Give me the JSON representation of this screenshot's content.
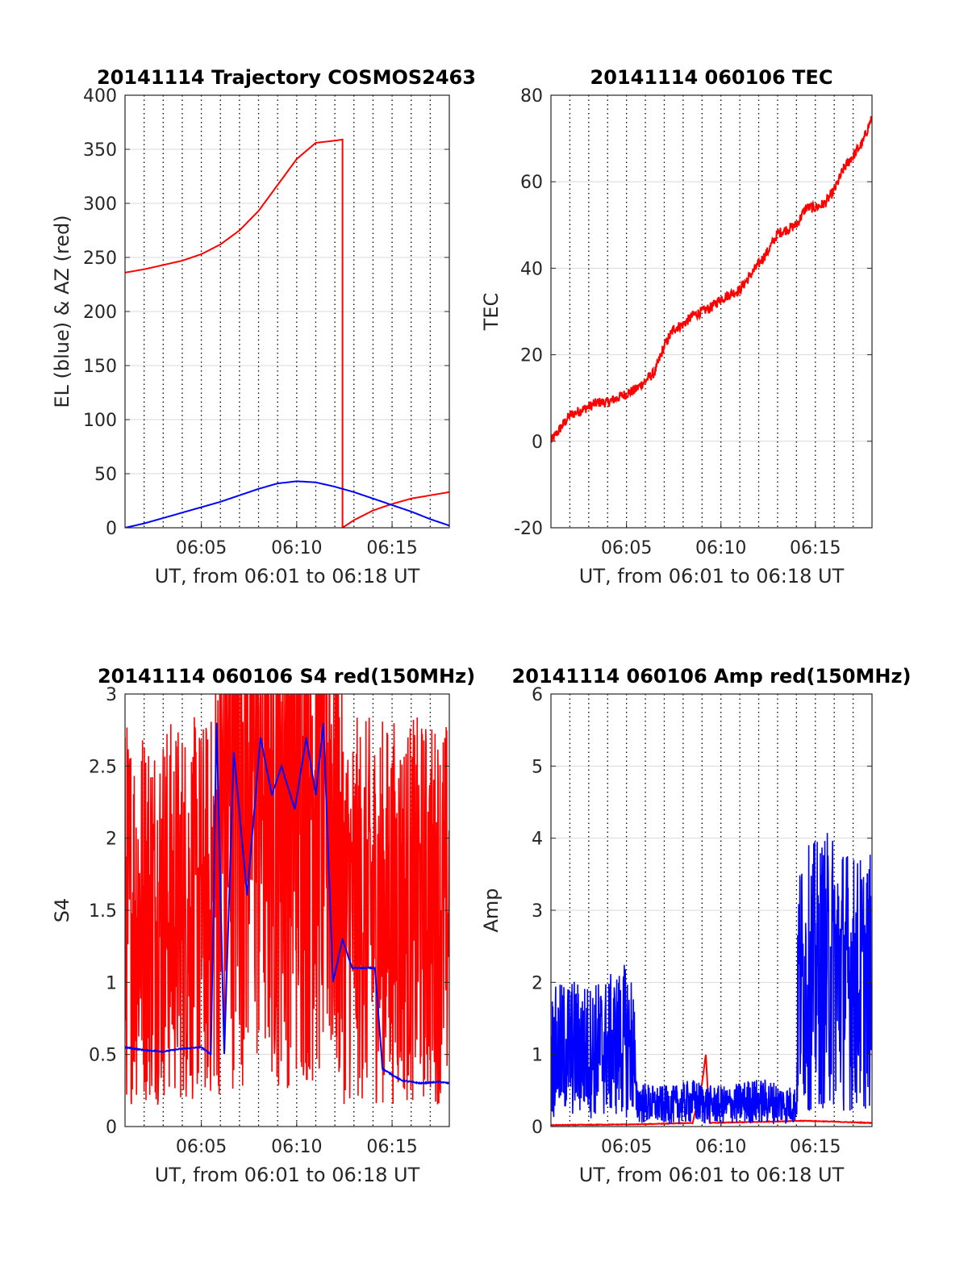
{
  "figure": {
    "background": "#ffffff"
  },
  "colors": {
    "red": "#ff0000",
    "blue": "#0000ff",
    "grid": "#d9d9d9",
    "vgrid": "#000000"
  },
  "chart_data": [
    {
      "type": "line",
      "title": "20141114 Trajectory COSMOS2463",
      "xlabel": "UT, from 06:01 to 06:18 UT",
      "ylabel": "EL (blue) & AZ (red)",
      "xlim": [
        6.1,
        23.1
      ],
      "ylim": [
        0,
        400
      ],
      "yticks": [
        0,
        50,
        100,
        150,
        200,
        250,
        300,
        350,
        400
      ],
      "xticks": [
        {
          "value": 10.1,
          "label": "06:05"
        },
        {
          "value": 15.1,
          "label": "06:10"
        },
        {
          "value": 20.1,
          "label": "06:15"
        }
      ],
      "grid": true,
      "series": [
        {
          "color": "#ff0000",
          "x": [
            6.1,
            7.1,
            8.1,
            9.1,
            10.1,
            11.1,
            12.1,
            13.1,
            14.1,
            15.1,
            16.1,
            17.1,
            17.5,
            17.5,
            17.5,
            18.1,
            19.1,
            20.1,
            21.1,
            22.1,
            23.1
          ],
          "values": [
            236,
            239,
            243,
            247,
            253,
            262,
            275,
            293,
            317,
            341,
            356,
            358,
            359,
            0,
            0,
            7,
            16,
            22,
            27,
            30,
            33
          ]
        },
        {
          "color": "#0000ff",
          "x": [
            6.1,
            7.1,
            8.1,
            9.1,
            10.1,
            11.1,
            12.1,
            13.1,
            14.1,
            15.1,
            16.1,
            17.1,
            18.1,
            19.1,
            20.1,
            21.1,
            22.1,
            23.1
          ],
          "values": [
            0,
            4,
            9,
            14,
            19,
            24,
            30,
            36,
            41,
            43,
            42,
            38,
            33,
            27,
            21,
            15,
            8,
            2
          ]
        }
      ]
    },
    {
      "type": "line",
      "title": "20141114 060106 TEC",
      "xlabel": "UT, from 06:01 to 06:18 UT",
      "ylabel": "TEC",
      "xlim": [
        6.1,
        23.1
      ],
      "ylim": [
        -20,
        80
      ],
      "yticks": [
        -20,
        0,
        20,
        40,
        60,
        80
      ],
      "xticks": [
        {
          "value": 10.1,
          "label": "06:05"
        },
        {
          "value": 15.1,
          "label": "06:10"
        },
        {
          "value": 20.1,
          "label": "06:15"
        }
      ],
      "grid": true,
      "series": [
        {
          "color": "#ff0000",
          "noise": 0.8,
          "x": [
            6.1,
            6.6,
            7.1,
            7.6,
            8.1,
            8.6,
            9.1,
            9.6,
            10.1,
            10.6,
            11.1,
            11.6,
            12.1,
            12.6,
            13.1,
            13.6,
            14.1,
            14.6,
            15.1,
            15.6,
            16.1,
            16.6,
            17.1,
            17.6,
            18.1,
            18.6,
            19.1,
            19.6,
            20.1,
            20.6,
            21.1,
            21.6,
            22.1,
            22.6,
            23.1
          ],
          "values": [
            0,
            3,
            6,
            7,
            8,
            9,
            9,
            10,
            11,
            12,
            14,
            16,
            22,
            26,
            27,
            29,
            30,
            31,
            33,
            34,
            35,
            38,
            41,
            44,
            48,
            49,
            50,
            54,
            54,
            55,
            58,
            63,
            66,
            69,
            75
          ]
        }
      ]
    },
    {
      "type": "line",
      "title": "20141114 060106 S4 red(150MHz)",
      "xlabel": "UT, from 06:01 to 06:18 UT",
      "ylabel": "S4",
      "xlim": [
        6.1,
        23.1
      ],
      "ylim": [
        0,
        3
      ],
      "yticks": [
        0,
        0.5,
        1,
        1.5,
        2,
        2.5,
        3
      ],
      "xticks": [
        {
          "value": 10.1,
          "label": "06:05"
        },
        {
          "value": 15.1,
          "label": "06:10"
        },
        {
          "value": 20.1,
          "label": "06:15"
        }
      ],
      "grid": true,
      "series": [
        {
          "color": "#ff0000",
          "noise": 1.5,
          "x": [
            6.1,
            7.1,
            8.1,
            9.1,
            10.1,
            10.6,
            11.6,
            12.6,
            13.6,
            14.6,
            15.6,
            16.6,
            17.6,
            18.6,
            19.6,
            20.1,
            20.6,
            21.6,
            22.6,
            23.1
          ],
          "values": [
            1.5,
            1.5,
            1.5,
            1.5,
            1.5,
            1.5,
            2.5,
            2.8,
            2.5,
            2.5,
            2.5,
            2.6,
            1.5,
            1.5,
            1.5,
            1.5,
            1.5,
            1.5,
            1.5,
            1.5
          ]
        },
        {
          "color": "#0000ff",
          "noise": 0.08,
          "x": [
            6.1,
            7.1,
            8.1,
            9.1,
            10.1,
            10.6,
            10.9,
            11.3,
            11.8,
            12.5,
            13.2,
            13.8,
            14.3,
            15.0,
            15.6,
            16.1,
            16.5,
            17.0,
            17.5,
            18.0,
            19.2,
            19.6,
            20.6,
            21.6,
            22.6,
            23.1
          ],
          "values": [
            0.55,
            0.53,
            0.52,
            0.54,
            0.55,
            0.5,
            2.8,
            0.5,
            2.6,
            1.6,
            2.7,
            2.3,
            2.5,
            2.2,
            2.7,
            2.3,
            2.8,
            1.0,
            1.3,
            1.1,
            1.1,
            0.4,
            0.32,
            0.3,
            0.31,
            0.3
          ]
        }
      ]
    },
    {
      "type": "line",
      "title": "20141114 060106 Amp red(150MHz)",
      "xlabel": "UT, from 06:01 to 06:18 UT",
      "ylabel": "Amp",
      "xlim": [
        6.1,
        23.1
      ],
      "ylim": [
        0,
        6
      ],
      "yticks": [
        0,
        1,
        2,
        3,
        4,
        5,
        6
      ],
      "xticks": [
        {
          "value": 10.1,
          "label": "06:05"
        },
        {
          "value": 15.1,
          "label": "06:10"
        },
        {
          "value": 20.1,
          "label": "06:15"
        }
      ],
      "grid": true,
      "series": [
        {
          "color": "#ff0000",
          "noise": 0.05,
          "x": [
            6.1,
            10.6,
            13.6,
            14.1,
            14.3,
            14.5,
            19.6,
            23.1
          ],
          "values": [
            0.02,
            0.03,
            0.05,
            0.6,
            1.0,
            0.05,
            0.08,
            0.05
          ]
        },
        {
          "color": "#0000ff",
          "noise": 1.5,
          "x": [
            6.1,
            7.1,
            8.1,
            9.1,
            10.1,
            10.5,
            10.6,
            11.6,
            12.6,
            13.6,
            14.6,
            15.6,
            16.6,
            17.6,
            18.6,
            19.1,
            19.2,
            20.1,
            21.1,
            22.1,
            23.1
          ],
          "values": [
            1.0,
            1.1,
            1.05,
            1.1,
            1.2,
            1.1,
            0.35,
            0.3,
            0.3,
            0.35,
            0.3,
            0.3,
            0.35,
            0.35,
            0.3,
            0.3,
            2.0,
            2.1,
            2.2,
            2.0,
            2.0
          ]
        }
      ]
    }
  ]
}
